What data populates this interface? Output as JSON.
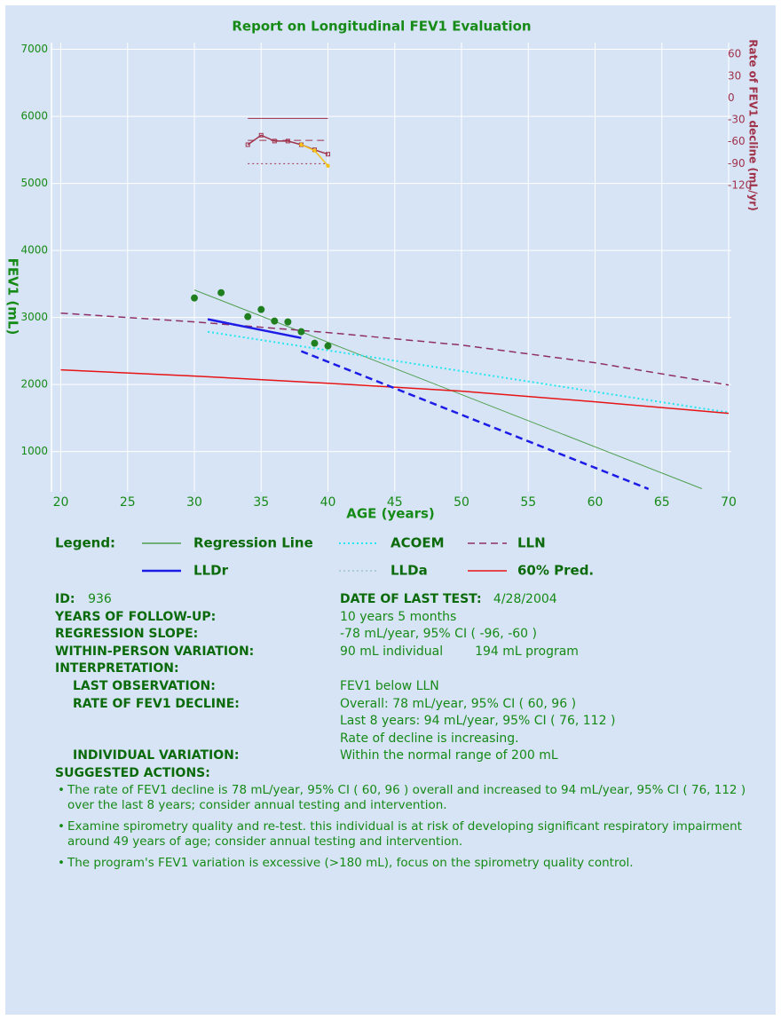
{
  "chart_data": {
    "type": "line",
    "title": "Report on Longitudinal FEV1 Evaluation",
    "x_label": "AGE (years)",
    "y_label": "FEV1 (mL)",
    "y2_label": "Rate of FEV1 decline (mL/yr)",
    "xlim": [
      19.3,
      70.2
    ],
    "xticks": [
      20,
      25,
      30,
      35,
      40,
      45,
      50,
      55,
      60,
      65,
      70
    ],
    "ylim": [
      400,
      7100
    ],
    "yticks": [
      1000,
      2000,
      3000,
      4000,
      5000,
      6000,
      7000
    ],
    "y2lim": [
      -540,
      76
    ],
    "y2ticks": [
      60,
      30,
      0,
      -30,
      -60,
      -90,
      -120
    ],
    "grid": true,
    "legend_title": "Legend:",
    "series": [
      {
        "name": "Regression Line",
        "color": "#4f9f4f",
        "style": "solid",
        "width": 1,
        "x": [
          30,
          68
        ],
        "values": [
          3411,
          447
        ]
      },
      {
        "name": "ACOEM",
        "color": "#22e6f0",
        "style": "dotted",
        "width": 2,
        "x": [
          31,
          70
        ],
        "values": [
          2788,
          1583
        ]
      },
      {
        "name": "LLN",
        "color": "#8e2f66",
        "style": "dashed",
        "width": 1.5,
        "x": [
          20,
          30,
          40,
          50,
          60,
          70
        ],
        "values": [
          3066,
          2934,
          2775,
          2589,
          2325,
          1993
        ]
      },
      {
        "name": "LLDr",
        "color": "#1c1ce6",
        "style": "solid",
        "width": 2.5,
        "x": [
          31,
          38
        ],
        "values": [
          2974,
          2695
        ]
      },
      {
        "name": "LLDa",
        "color": "#9ec4d4",
        "style": "dotted",
        "width": 1.5
      },
      {
        "name": "60% Pred.",
        "color": "#e61414",
        "style": "solid",
        "width": 1.5,
        "x": [
          20,
          30,
          40,
          50,
          60,
          70
        ],
        "values": [
          2219,
          2126,
          2020,
          1901,
          1742,
          1570
        ]
      },
      {
        "color": "#1c1ce6",
        "style": "dashed",
        "width": 2.5,
        "x": [
          38,
          64
        ],
        "values": [
          2497,
          443
        ]
      },
      {
        "type": "scatter",
        "color": "#1f7f1f",
        "x": [
          30,
          32,
          34,
          35,
          36,
          37,
          38,
          39,
          40
        ],
        "values": [
          3291,
          3370,
          3013,
          3119,
          2947,
          2934,
          2788,
          2616,
          2576
        ]
      },
      {
        "axis": "y2",
        "color": "#a0324a",
        "style": "solid",
        "width": 1,
        "x": [
          34,
          40
        ],
        "values": [
          -28,
          -28
        ]
      },
      {
        "axis": "y2",
        "color": "#a0324a",
        "style": "dashed",
        "width": 1,
        "x": [
          34,
          40
        ],
        "values": [
          -58,
          -58
        ]
      },
      {
        "axis": "y2",
        "color": "#a0324a",
        "style": "dotted",
        "width": 1,
        "x": [
          34,
          40
        ],
        "values": [
          -90,
          -90
        ]
      },
      {
        "axis": "y2",
        "color": "#a0324a",
        "style": "solid",
        "width": 1.5,
        "marker": "square",
        "x": [
          34,
          35,
          36,
          37,
          38,
          39,
          40
        ],
        "values": [
          -64,
          -51,
          -59,
          -59,
          -64,
          -71,
          -77
        ]
      },
      {
        "axis": "y2",
        "color": "#f5c21a",
        "style": "solid",
        "width": 1.5,
        "marker": "circle",
        "x": [
          38,
          39,
          40
        ],
        "values": [
          -64,
          -72,
          -93
        ]
      }
    ]
  },
  "report": {
    "id": {
      "label": "ID:",
      "value": "936"
    },
    "date_of_last_test": {
      "label": "DATE OF LAST TEST:",
      "value": "4/28/2004"
    },
    "years_of_follow_up": {
      "label": "YEARS OF FOLLOW-UP:",
      "value": "10 years 5 months"
    },
    "regression_slope": {
      "label": "REGRESSION SLOPE:",
      "value": "-78 mL/year, 95% CI ( -96, -60 )"
    },
    "within_person_variation": {
      "label": "WITHIN-PERSON VARIATION:",
      "individual": "90 mL individual",
      "program": "194 mL program"
    },
    "interpretation": {
      "label": "INTERPRETATION:",
      "items": [
        {
          "label": "LAST OBSERVATION:",
          "lines": [
            "FEV1 below LLN"
          ]
        },
        {
          "label": "RATE OF FEV1 DECLINE:",
          "lines": [
            "Overall: 78 mL/year, 95% CI ( 60, 96 )",
            "Last 8 years: 94 mL/year, 95% CI ( 76, 112 )",
            "Rate of decline is increasing."
          ]
        },
        {
          "label": "INDIVIDUAL VARIATION:",
          "lines": [
            "Within the normal range of 200 mL"
          ]
        }
      ]
    },
    "suggested_actions": {
      "label": "SUGGESTED ACTIONS:",
      "items": [
        "The rate of FEV1 decline is  78 mL/year, 95% CI ( 60, 96 ) overall and increased to 94 mL/year, 95% CI ( 76, 112 ) over the last 8 years; consider annual testing and intervention.",
        "Examine spirometry quality and re-test. this individual is at risk of developing significant respiratory impairment around 49 years of age; consider annual testing and intervention.",
        "The program's FEV1 variation is excessive (>180 mL), focus on the spirometry quality control."
      ]
    }
  }
}
